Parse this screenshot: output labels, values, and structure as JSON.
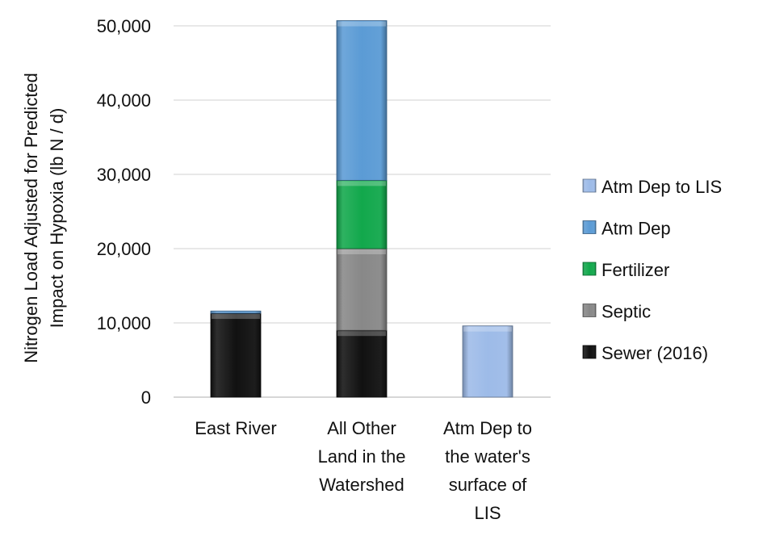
{
  "chart_data": {
    "type": "bar",
    "stacked": true,
    "ylabel_lines": [
      "Nitrogen Load Adjusted for Predicted",
      "Impact on Hypoxia (lb N / d)"
    ],
    "ylim": [
      0,
      50000
    ],
    "yticks": [
      0,
      10000,
      20000,
      30000,
      40000,
      50000
    ],
    "ytick_labels": [
      "0",
      "10,000",
      "20,000",
      "30,000",
      "40,000",
      "50,000"
    ],
    "grid": true,
    "legend_position": "right",
    "categories": [
      [
        "East River"
      ],
      [
        "All Other",
        "Land in the",
        "Watershed"
      ],
      [
        "Atm Dep to",
        "the water's",
        "surface of",
        "LIS"
      ]
    ],
    "series": [
      {
        "name": "Sewer (2016)",
        "color": "#111111",
        "values": [
          11300,
          9000,
          0
        ]
      },
      {
        "name": "Septic",
        "color": "#888888",
        "values": [
          0,
          11000,
          0
        ]
      },
      {
        "name": "Fertilizer",
        "color": "#12a84c",
        "values": [
          0,
          9200,
          0
        ]
      },
      {
        "name": "Atm Dep",
        "color": "#5b9bd5",
        "values": [
          300,
          21500,
          0
        ]
      },
      {
        "name": "Atm Dep to LIS",
        "color": "#9dbbe8",
        "values": [
          0,
          0,
          9600
        ]
      }
    ],
    "legend_order": [
      "Atm Dep to LIS",
      "Atm Dep",
      "Fertilizer",
      "Septic",
      "Sewer (2016)"
    ]
  }
}
